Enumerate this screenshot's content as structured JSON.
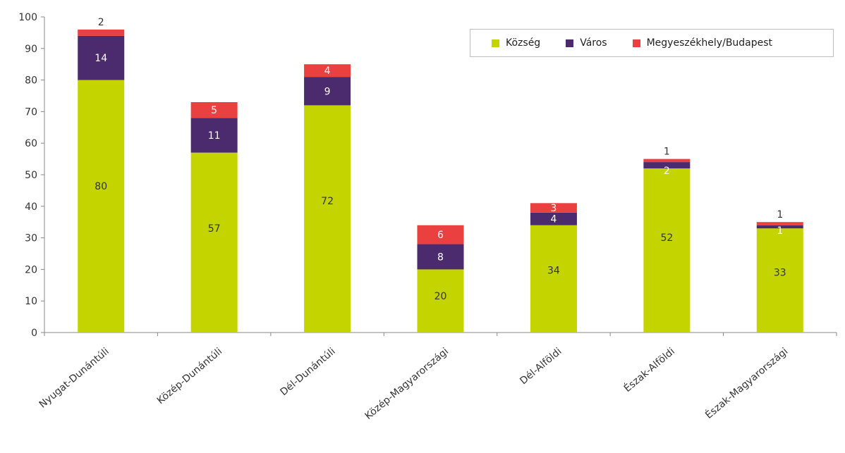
{
  "chart_data": {
    "type": "bar",
    "stacked": true,
    "categories": [
      "Nyugat-Dunántúli",
      "Közép-Dunántúli",
      "Dél-Dunántúli",
      "Közép-Magyarországi",
      "Dél-Alföldi",
      "Észak-Alföldi",
      "Észak-Magyarországi"
    ],
    "series": [
      {
        "name": "Község",
        "color": "#c3d400",
        "values": [
          80,
          57,
          72,
          20,
          34,
          52,
          33
        ]
      },
      {
        "name": "Város",
        "color": "#4b2a6e",
        "values": [
          14,
          11,
          9,
          8,
          4,
          2,
          1
        ]
      },
      {
        "name": "Megyeszékhely/Budapest",
        "color": "#ea4040",
        "values": [
          2,
          5,
          4,
          6,
          3,
          1,
          1
        ]
      }
    ],
    "ylim": [
      0,
      100
    ],
    "yticks": [
      "0",
      "10",
      "20",
      "30",
      "40",
      "50",
      "60",
      "70",
      "80",
      "90",
      "100"
    ],
    "legend_position": "top-right",
    "grid": false
  }
}
